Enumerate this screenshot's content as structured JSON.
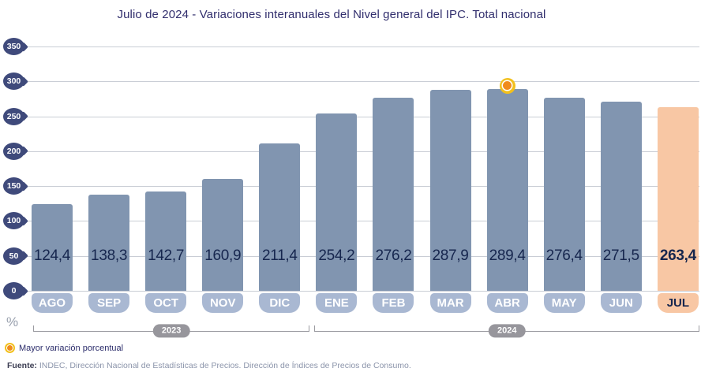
{
  "title": "Julio de 2024 - Variaciones interanuales del Nivel general del IPC. Total nacional",
  "chart_data": {
    "type": "bar",
    "categories": [
      "AGO",
      "SEP",
      "OCT",
      "NOV",
      "DIC",
      "ENE",
      "FEB",
      "MAR",
      "ABR",
      "MAY",
      "JUN",
      "JUL"
    ],
    "values": [
      124.4,
      138.3,
      142.7,
      160.9,
      211.4,
      254.2,
      276.2,
      287.9,
      289.4,
      276.4,
      271.5,
      263.4
    ],
    "value_labels": [
      "124,4",
      "138,3",
      "142,7",
      "160,9",
      "211,4",
      "254,2",
      "276,2",
      "287,9",
      "289,4",
      "276,4",
      "271,5",
      "263,4"
    ],
    "ylim": [
      0,
      350
    ],
    "yticks": [
      350,
      300,
      250,
      200,
      150,
      100,
      50,
      0
    ],
    "ylabel": "%",
    "grid": true,
    "legend_position": "bottom-left",
    "highlight_index": 11,
    "marker_index": 8,
    "year_groups": [
      {
        "label": "2023",
        "months": [
          "AGO",
          "SEP",
          "OCT",
          "NOV",
          "DIC"
        ]
      },
      {
        "label": "2024",
        "months": [
          "ENE",
          "FEB",
          "MAR",
          "ABR",
          "MAY",
          "JUN",
          "JUL"
        ]
      }
    ]
  },
  "legend": {
    "marker_icon": "gold-orange-dot-icon",
    "label": "Mayor variación porcentual"
  },
  "footer": {
    "prefix": "Fuente:",
    "text": "INDEC, Dirección Nacional de Estadísticas de Precios. Dirección de Índices de Precios de Consumo."
  },
  "colors": {
    "title": "#312e6d",
    "bar": "#8195b0",
    "bar_highlight": "#f8c7a4",
    "value_text": "#16264e",
    "month_pill": "#a9b8d2",
    "month_text": "#ffffff",
    "axis_badge": "#3f4a7b",
    "gridline": "#c9cdd5",
    "bracket": "#9b9ba1",
    "year_pill": "#97969c",
    "marker_outer": "#f2c01d",
    "marker_inner": "#f08b1c",
    "unit_text": "#99a0ae",
    "legend_text": "#2c2d6b",
    "footer_prefix": "#3b3d52",
    "footer_text": "#8b94aa"
  }
}
